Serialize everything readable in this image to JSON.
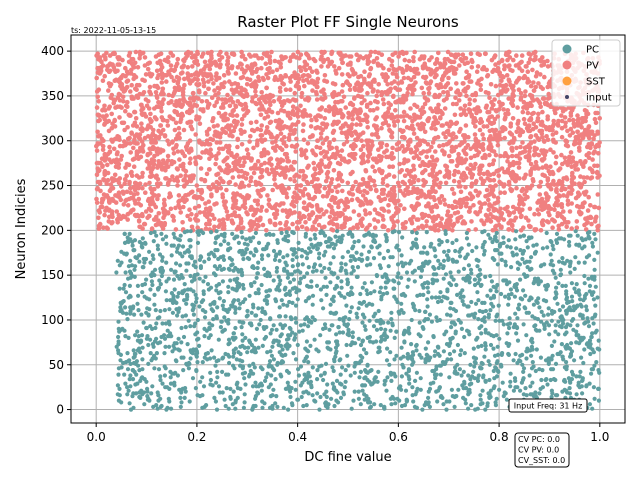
{
  "chart_data": {
    "type": "scatter",
    "title": "Raster Plot FF Single Neurons",
    "xlabel": "DC fine value",
    "ylabel": "Neuron Indicies",
    "xlim": [
      -0.05,
      1.05
    ],
    "ylim": [
      -15,
      418
    ],
    "x_ticks": [
      0.0,
      0.2,
      0.4,
      0.6,
      0.8,
      1.0
    ],
    "x_tick_labels": [
      "0.0",
      "0.2",
      "0.4",
      "0.6",
      "0.8",
      "1.0"
    ],
    "y_ticks": [
      0,
      50,
      100,
      150,
      200,
      250,
      300,
      350,
      400
    ],
    "y_tick_labels": [
      "0",
      "50",
      "100",
      "150",
      "200",
      "250",
      "300",
      "350",
      "400"
    ],
    "grid": true,
    "legend_position": "top-right",
    "series": [
      {
        "name": "PC",
        "color": "#5f9ea0",
        "x_range": [
          0.04,
          1.0
        ],
        "neuron_range": [
          0,
          199
        ]
      },
      {
        "name": "PV",
        "color": "#f08080",
        "x_range": [
          0.0,
          1.0
        ],
        "neuron_range": [
          200,
          399
        ]
      },
      {
        "name": "SST",
        "color": "#ffa040",
        "x_range": [],
        "neuron_range": []
      },
      {
        "name": "input",
        "color": "#444466",
        "x_range": [],
        "neuron_range": []
      }
    ],
    "annotations": {
      "timestamp": "ts: 2022-11-05-13-15",
      "input_freq": "Input Freq: 31 Hz",
      "cv_pc": "CV PC: 0.0",
      "cv_pv": "CV PV: 0.0",
      "cv_sst": "CV_SST: 0.0"
    }
  }
}
